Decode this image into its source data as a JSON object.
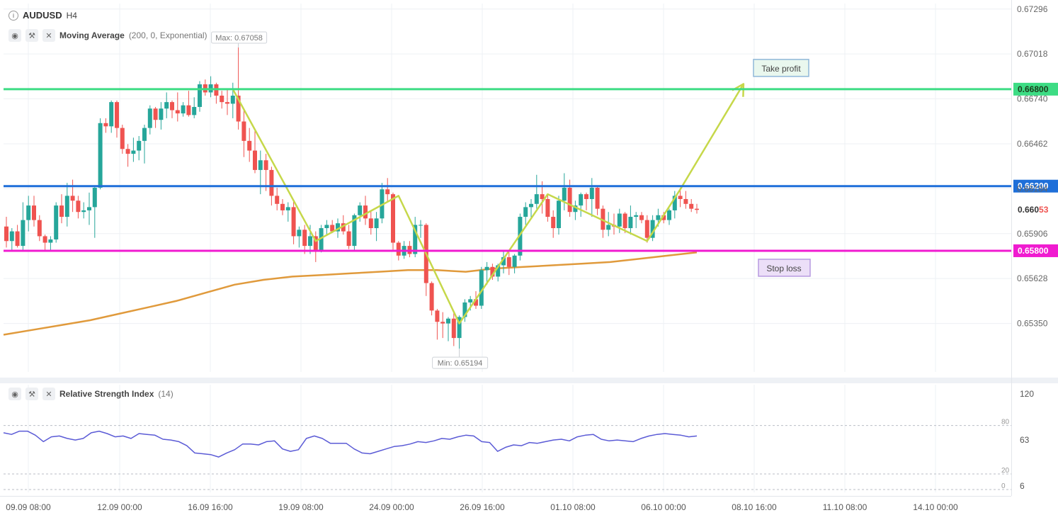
{
  "header": {
    "info_icon": "info-icon",
    "symbol": "AUDUSD",
    "timeframe": "H4"
  },
  "indicators": {
    "ma": {
      "name": "Moving Average",
      "params": "(200, 0, Exponential)"
    },
    "rsi": {
      "name": "Relative Strength Index",
      "params": "(14)"
    }
  },
  "colors": {
    "up": "#26a69a",
    "down": "#ef5350",
    "ma": "#e09a3c",
    "zigzag": "#c6d84a",
    "take_profit_line": "#3ddc84",
    "resistance_line": "#1e6fd9",
    "stop_loss_line": "#f01bd0",
    "rsi_line": "#5b5bd6",
    "grid": "#eef0f4"
  },
  "annotations": {
    "take_profit": "Take profit",
    "stop_loss": "Stop loss",
    "max": "Max: 0.67058",
    "min": "Min: 0.65194"
  },
  "chart_data": {
    "type": "candlestick",
    "symbol": "AUDUSD",
    "timeframe": "H4",
    "price_axis": {
      "ticks": [
        "0.67296",
        "0.67018",
        "0.66740",
        "0.66462",
        "0.66184",
        "0.65906",
        "0.65628",
        "0.65350"
      ],
      "range": [
        0.6505,
        0.6733
      ]
    },
    "x_axis": {
      "ticks": [
        "09.09 08:00",
        "12.09 00:00",
        "16.09 16:00",
        "19.09 08:00",
        "24.09 00:00",
        "26.09 16:00",
        "01.10 08:00",
        "06.10 00:00",
        "08.10 16:00",
        "11.10 08:00",
        "14.10 00:00"
      ]
    },
    "current_price": {
      "text": "0.66053",
      "prefix": "0.660",
      "suffix": "53",
      "value": 0.66053
    },
    "levels": [
      {
        "label": "0.66800",
        "value": 0.668,
        "kind": "take_profit"
      },
      {
        "label": "0.66200",
        "value": 0.662,
        "kind": "resistance"
      },
      {
        "label": "0.65800",
        "value": 0.658,
        "kind": "stop_loss"
      }
    ],
    "max": 0.67058,
    "min": 0.65194,
    "candles": [
      [
        0.6595,
        0.6601,
        0.6582,
        0.6586
      ],
      [
        0.6586,
        0.6594,
        0.658,
        0.6592
      ],
      [
        0.6592,
        0.6596,
        0.6582,
        0.6583
      ],
      [
        0.6583,
        0.661,
        0.658,
        0.6599
      ],
      [
        0.6599,
        0.6614,
        0.6592,
        0.6608
      ],
      [
        0.6608,
        0.6614,
        0.6595,
        0.6599
      ],
      [
        0.6599,
        0.6602,
        0.6586,
        0.6589
      ],
      [
        0.6589,
        0.659,
        0.658,
        0.6585
      ],
      [
        0.6585,
        0.6589,
        0.658,
        0.6587
      ],
      [
        0.6587,
        0.661,
        0.6585,
        0.6608
      ],
      [
        0.6608,
        0.6615,
        0.6597,
        0.6601
      ],
      [
        0.6601,
        0.6622,
        0.6595,
        0.6614
      ],
      [
        0.6614,
        0.6624,
        0.6604,
        0.6611
      ],
      [
        0.6611,
        0.6614,
        0.66,
        0.6604
      ],
      [
        0.6604,
        0.661,
        0.66,
        0.6605
      ],
      [
        0.6605,
        0.6616,
        0.6596,
        0.6607
      ],
      [
        0.6607,
        0.662,
        0.6588,
        0.6619
      ],
      [
        0.6619,
        0.6662,
        0.6618,
        0.6659
      ],
      [
        0.6659,
        0.6662,
        0.6653,
        0.6657
      ],
      [
        0.6657,
        0.6673,
        0.6653,
        0.6672
      ],
      [
        0.6672,
        0.6673,
        0.665,
        0.6656
      ],
      [
        0.6656,
        0.6658,
        0.664,
        0.6643
      ],
      [
        0.6643,
        0.6646,
        0.6632,
        0.664
      ],
      [
        0.664,
        0.665,
        0.6635,
        0.6642
      ],
      [
        0.6642,
        0.6651,
        0.6636,
        0.6648
      ],
      [
        0.6648,
        0.6658,
        0.6634,
        0.6656
      ],
      [
        0.6656,
        0.667,
        0.6652,
        0.6668
      ],
      [
        0.6668,
        0.6669,
        0.6656,
        0.6661
      ],
      [
        0.6661,
        0.6672,
        0.6655,
        0.6668
      ],
      [
        0.6668,
        0.6678,
        0.6662,
        0.6672
      ],
      [
        0.6672,
        0.6673,
        0.6662,
        0.6667
      ],
      [
        0.6667,
        0.6678,
        0.666,
        0.6665
      ],
      [
        0.6665,
        0.6672,
        0.6663,
        0.667
      ],
      [
        0.667,
        0.6679,
        0.6663,
        0.6664
      ],
      [
        0.6664,
        0.6675,
        0.6662,
        0.6669
      ],
      [
        0.6669,
        0.6685,
        0.6666,
        0.6683
      ],
      [
        0.6683,
        0.6686,
        0.6676,
        0.6678
      ],
      [
        0.6678,
        0.6688,
        0.6675,
        0.6683
      ],
      [
        0.6683,
        0.6684,
        0.6671,
        0.6676
      ],
      [
        0.6676,
        0.6679,
        0.6668,
        0.6672
      ],
      [
        0.6672,
        0.668,
        0.6664,
        0.6671
      ],
      [
        0.6671,
        0.6684,
        0.6662,
        0.6676
      ],
      [
        0.6676,
        0.67058,
        0.6655,
        0.666
      ],
      [
        0.666,
        0.6668,
        0.6638,
        0.6648
      ],
      [
        0.6648,
        0.6656,
        0.6635,
        0.6642
      ],
      [
        0.6642,
        0.6654,
        0.6628,
        0.663
      ],
      [
        0.663,
        0.6642,
        0.6615,
        0.6636
      ],
      [
        0.6636,
        0.664,
        0.6617,
        0.663
      ],
      [
        0.663,
        0.6632,
        0.6608,
        0.6614
      ],
      [
        0.6614,
        0.6619,
        0.6605,
        0.6609
      ],
      [
        0.6609,
        0.6612,
        0.6602,
        0.6605
      ],
      [
        0.6605,
        0.661,
        0.6598,
        0.6607
      ],
      [
        0.6607,
        0.6611,
        0.6584,
        0.6589
      ],
      [
        0.6589,
        0.6595,
        0.6582,
        0.6593
      ],
      [
        0.6593,
        0.6596,
        0.6578,
        0.6583
      ],
      [
        0.6583,
        0.6596,
        0.6578,
        0.6589
      ],
      [
        0.6589,
        0.6592,
        0.6573,
        0.658
      ],
      [
        0.658,
        0.6596,
        0.6579,
        0.6594
      ],
      [
        0.6594,
        0.6599,
        0.659,
        0.6596
      ],
      [
        0.6596,
        0.6599,
        0.6591,
        0.6592
      ],
      [
        0.6592,
        0.66,
        0.6588,
        0.6597
      ],
      [
        0.6597,
        0.6602,
        0.659,
        0.6592
      ],
      [
        0.6592,
        0.6596,
        0.6581,
        0.6583
      ],
      [
        0.6583,
        0.6603,
        0.658,
        0.6602
      ],
      [
        0.6602,
        0.661,
        0.6598,
        0.6608
      ],
      [
        0.6608,
        0.6614,
        0.6596,
        0.66
      ],
      [
        0.66,
        0.6605,
        0.659,
        0.6594
      ],
      [
        0.6594,
        0.6604,
        0.6586,
        0.66
      ],
      [
        0.66,
        0.6622,
        0.6597,
        0.6618
      ],
      [
        0.6618,
        0.6625,
        0.661,
        0.6615
      ],
      [
        0.6615,
        0.6616,
        0.658,
        0.6585
      ],
      [
        0.6585,
        0.6586,
        0.6574,
        0.6577
      ],
      [
        0.6577,
        0.6586,
        0.6575,
        0.6583
      ],
      [
        0.6583,
        0.6586,
        0.6576,
        0.6578
      ],
      [
        0.6578,
        0.6601,
        0.6576,
        0.6596
      ],
      [
        0.6596,
        0.6599,
        0.6588,
        0.6596
      ],
      [
        0.6596,
        0.6597,
        0.6552,
        0.656
      ],
      [
        0.656,
        0.6561,
        0.654,
        0.6543
      ],
      [
        0.6543,
        0.6544,
        0.6525,
        0.6536
      ],
      [
        0.6536,
        0.6542,
        0.6526,
        0.6535
      ],
      [
        0.6535,
        0.6539,
        0.6524,
        0.6538
      ],
      [
        0.6538,
        0.6542,
        0.6521,
        0.6526
      ],
      [
        0.6526,
        0.654,
        0.65194,
        0.6539
      ],
      [
        0.6539,
        0.655,
        0.6536,
        0.6548
      ],
      [
        0.6548,
        0.6552,
        0.6543,
        0.655
      ],
      [
        0.655,
        0.6555,
        0.6544,
        0.6546
      ],
      [
        0.6546,
        0.657,
        0.6544,
        0.6568
      ],
      [
        0.6568,
        0.6573,
        0.6559,
        0.657
      ],
      [
        0.657,
        0.6572,
        0.6562,
        0.6564
      ],
      [
        0.6564,
        0.6572,
        0.6561,
        0.6571
      ],
      [
        0.6571,
        0.658,
        0.6566,
        0.6576
      ],
      [
        0.6576,
        0.6579,
        0.6565,
        0.657
      ],
      [
        0.657,
        0.6578,
        0.6566,
        0.6577
      ],
      [
        0.6577,
        0.6603,
        0.6574,
        0.6601
      ],
      [
        0.6601,
        0.661,
        0.6596,
        0.6607
      ],
      [
        0.6607,
        0.6612,
        0.66,
        0.6609
      ],
      [
        0.6609,
        0.6627,
        0.6606,
        0.6615
      ],
      [
        0.6615,
        0.6623,
        0.6603,
        0.6612
      ],
      [
        0.6612,
        0.6615,
        0.6598,
        0.6601
      ],
      [
        0.6601,
        0.6605,
        0.6588,
        0.6594
      ],
      [
        0.6594,
        0.6614,
        0.659,
        0.6611
      ],
      [
        0.6611,
        0.6628,
        0.6605,
        0.6619
      ],
      [
        0.6619,
        0.6624,
        0.6601,
        0.6604
      ],
      [
        0.6604,
        0.6611,
        0.6599,
        0.6608
      ],
      [
        0.6608,
        0.6616,
        0.6601,
        0.6615
      ],
      [
        0.6615,
        0.6616,
        0.6605,
        0.6612
      ],
      [
        0.6612,
        0.6625,
        0.6601,
        0.6619
      ],
      [
        0.6619,
        0.662,
        0.6602,
        0.6606
      ],
      [
        0.6606,
        0.6608,
        0.6588,
        0.6593
      ],
      [
        0.6593,
        0.6604,
        0.6589,
        0.6596
      ],
      [
        0.6596,
        0.6603,
        0.659,
        0.6595
      ],
      [
        0.6595,
        0.6606,
        0.6591,
        0.6603
      ],
      [
        0.6603,
        0.6604,
        0.6591,
        0.6594
      ],
      [
        0.6594,
        0.6608,
        0.659,
        0.6601
      ],
      [
        0.6601,
        0.6604,
        0.6594,
        0.6602
      ],
      [
        0.6602,
        0.6604,
        0.6597,
        0.6599
      ],
      [
        0.6599,
        0.6602,
        0.6585,
        0.6588
      ],
      [
        0.6588,
        0.6602,
        0.6586,
        0.6599
      ],
      [
        0.6599,
        0.6606,
        0.6595,
        0.6602
      ],
      [
        0.6602,
        0.6604,
        0.6597,
        0.6599
      ],
      [
        0.6599,
        0.6606,
        0.6596,
        0.6605
      ],
      [
        0.6605,
        0.6617,
        0.66,
        0.6614
      ],
      [
        0.6614,
        0.6619,
        0.6607,
        0.6612
      ],
      [
        0.6612,
        0.6617,
        0.6606,
        0.6609
      ],
      [
        0.6609,
        0.6612,
        0.6604,
        0.6606
      ],
      [
        0.6606,
        0.6609,
        0.6603,
        0.66053
      ]
    ],
    "ma": [
      0.6528,
      0.6531,
      0.6534,
      0.6537,
      0.6541,
      0.6545,
      0.6549,
      0.6554,
      0.6559,
      0.6562,
      0.6564,
      0.6565,
      0.6566,
      0.6567,
      0.6568,
      0.6568,
      0.6567,
      0.6569,
      0.657,
      0.6571,
      0.6572,
      0.6573,
      0.6575,
      0.6577,
      0.6579
    ],
    "zigzag": [
      [
        41,
        0.668
      ],
      [
        56,
        0.6586
      ],
      [
        71,
        0.6614
      ],
      [
        82,
        0.6535
      ],
      [
        98,
        0.6615
      ],
      [
        116,
        0.6586
      ],
      [
        122,
        0.6618
      ],
      [
        132,
        0.6675
      ]
    ],
    "rsi": {
      "axis_ticks": [
        "120",
        "63",
        "6"
      ],
      "levels": [
        80,
        20,
        0
      ],
      "level_labels": [
        "80",
        "20",
        "0"
      ],
      "range": [
        6,
        120
      ],
      "values": [
        71,
        69,
        73,
        73,
        68,
        60,
        66,
        67,
        64,
        62,
        64,
        71,
        73,
        70,
        66,
        67,
        64,
        70,
        69,
        68,
        63,
        62,
        60,
        55,
        46,
        45,
        44,
        41,
        46,
        50,
        57,
        57,
        56,
        60,
        61,
        51,
        48,
        50,
        64,
        67,
        64,
        58,
        58,
        58,
        51,
        46,
        45,
        48,
        51,
        54,
        55,
        57,
        60,
        59,
        61,
        64,
        63,
        66,
        68,
        67,
        60,
        59,
        48,
        53,
        56,
        55,
        59,
        58,
        60,
        62,
        63,
        61,
        66,
        68,
        69,
        63,
        61,
        62,
        61,
        60,
        64,
        67,
        69,
        70,
        69,
        68,
        66,
        67
      ]
    }
  }
}
